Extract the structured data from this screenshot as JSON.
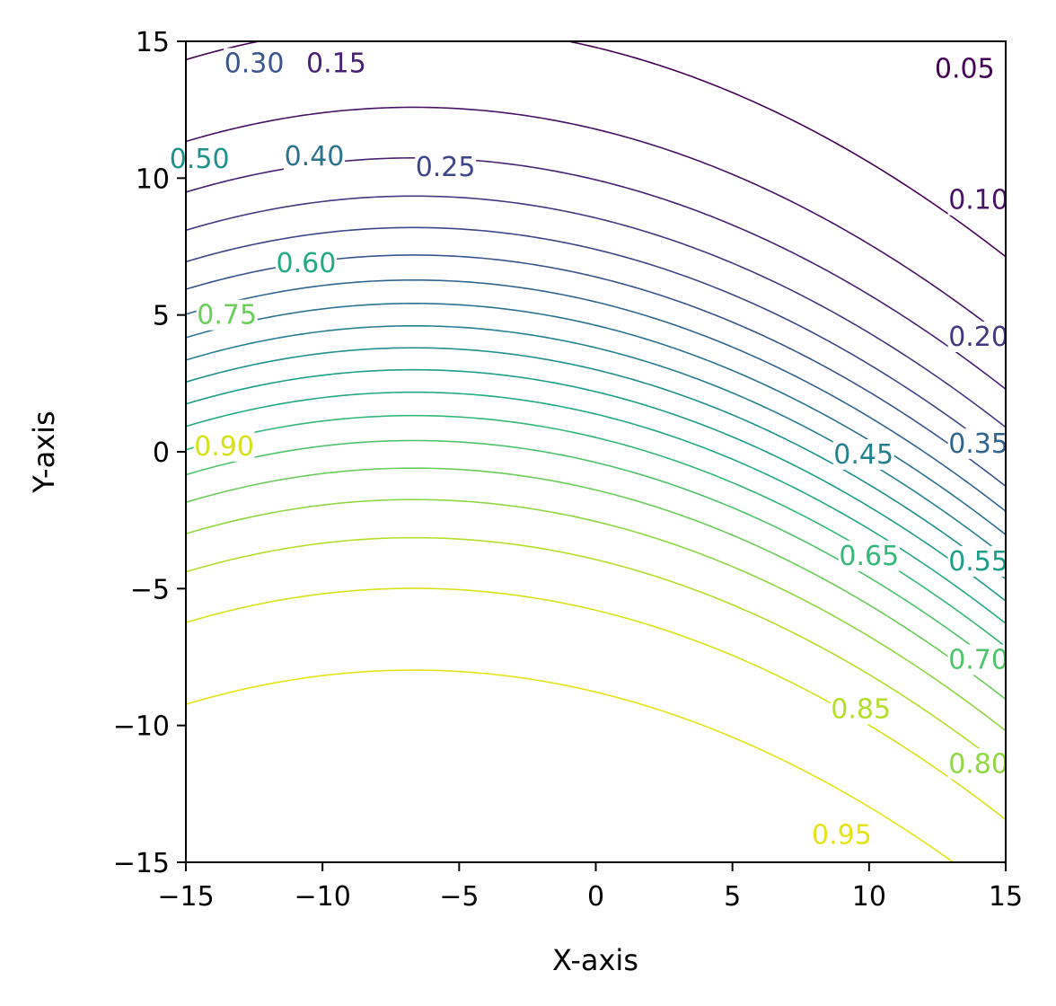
{
  "chart_data": {
    "type": "contour",
    "xlabel": "X-axis",
    "ylabel": "Y-axis",
    "xlim": [
      -15,
      15
    ],
    "ylim": [
      -15,
      15
    ],
    "xticks": [
      -15,
      -10,
      -5,
      0,
      5,
      10,
      15
    ],
    "yticks": [
      -15,
      -10,
      -5,
      0,
      5,
      10,
      15
    ],
    "xtick_labels": [
      "−15",
      "−10",
      "−5",
      "0",
      "5",
      "10",
      "15"
    ],
    "ytick_labels": [
      "−15",
      "−10",
      "−5",
      "0",
      "5",
      "10",
      "15"
    ],
    "grid": false,
    "colormap": "viridis",
    "levels": [
      0.05,
      0.1,
      0.15,
      0.2,
      0.25,
      0.3,
      0.35,
      0.4,
      0.45,
      0.5,
      0.55,
      0.6,
      0.65,
      0.7,
      0.75,
      0.8,
      0.85,
      0.9,
      0.95
    ],
    "level_colors": [
      "#440154",
      "#471365",
      "#482374",
      "#453781",
      "#3f4788",
      "#39558c",
      "#32658e",
      "#2c738e",
      "#26818e",
      "#21918d",
      "#1e9e89",
      "#23a983",
      "#35b779",
      "#4ec36b",
      "#6ccd5a",
      "#90d743",
      "#b5de2b",
      "#d8e219",
      "#e5e419"
    ],
    "contour_labels": [
      {
        "text": "0.05",
        "x": 13.5,
        "y": 14.0,
        "color": "#440154"
      },
      {
        "text": "0.10",
        "x": 14.0,
        "y": 9.2,
        "color": "#471365"
      },
      {
        "text": "0.15",
        "x": -9.5,
        "y": 14.2,
        "color": "#482374"
      },
      {
        "text": "0.20",
        "x": 14.0,
        "y": 4.2,
        "color": "#453781"
      },
      {
        "text": "0.25",
        "x": -5.5,
        "y": 10.4,
        "color": "#3f4788"
      },
      {
        "text": "0.30",
        "x": -12.5,
        "y": 14.2,
        "color": "#39558c"
      },
      {
        "text": "0.35",
        "x": 14.0,
        "y": 0.3,
        "color": "#32658e"
      },
      {
        "text": "0.40",
        "x": -10.3,
        "y": 10.8,
        "color": "#2c738e"
      },
      {
        "text": "0.45",
        "x": 9.8,
        "y": -0.1,
        "color": "#26818e"
      },
      {
        "text": "0.50",
        "x": -14.5,
        "y": 10.7,
        "color": "#21918d"
      },
      {
        "text": "0.55",
        "x": 14.0,
        "y": -4.0,
        "color": "#1e9e89"
      },
      {
        "text": "0.60",
        "x": -10.6,
        "y": 6.9,
        "color": "#23a983"
      },
      {
        "text": "0.65",
        "x": 10.0,
        "y": -3.8,
        "color": "#35b779"
      },
      {
        "text": "0.70",
        "x": 14.0,
        "y": -7.6,
        "color": "#4ec36b"
      },
      {
        "text": "0.75",
        "x": -13.5,
        "y": 5.0,
        "color": "#6ccd5a"
      },
      {
        "text": "0.80",
        "x": 14.0,
        "y": -11.4,
        "color": "#90d743"
      },
      {
        "text": "0.85",
        "x": 9.7,
        "y": -9.4,
        "color": "#b5de2b"
      },
      {
        "text": "0.90",
        "x": -13.6,
        "y": 0.2,
        "color": "#d8e219"
      },
      {
        "text": "0.95",
        "x": 9.0,
        "y": -14.0,
        "color": "#e5e419"
      }
    ]
  }
}
